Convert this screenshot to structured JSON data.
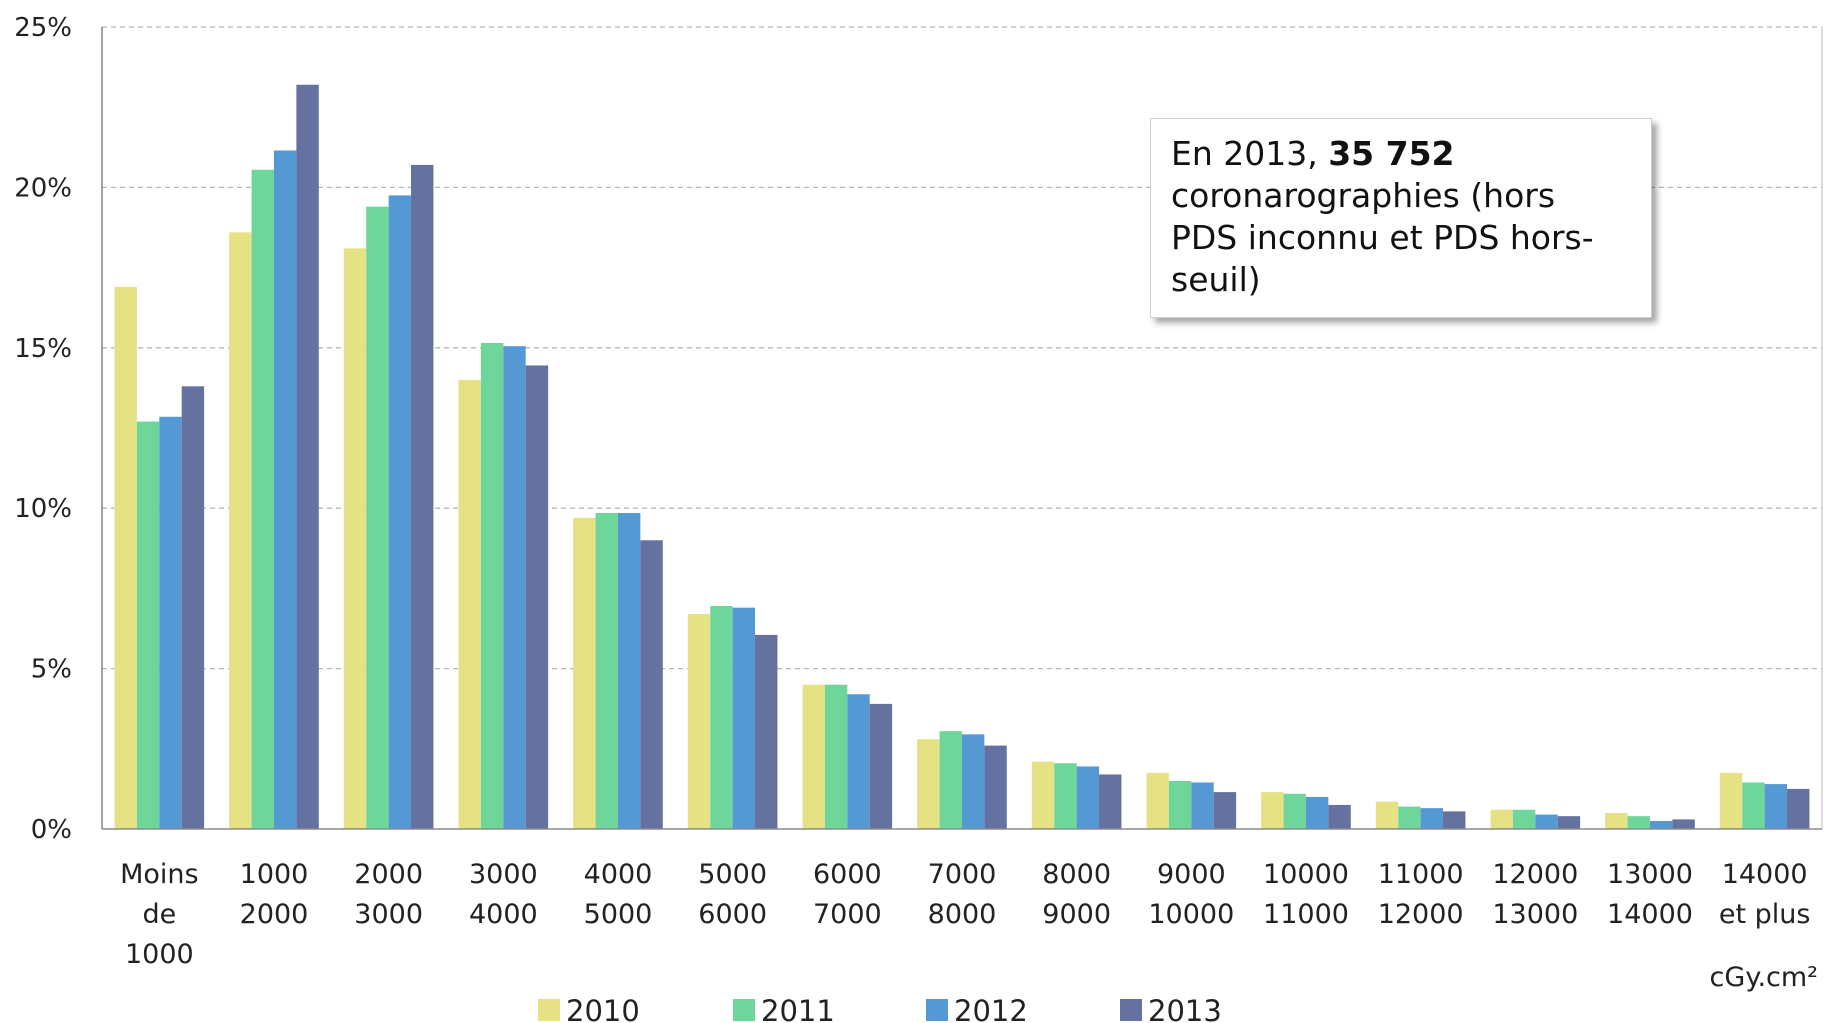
{
  "chart_data": {
    "type": "bar",
    "title": "",
    "xlabel": "cGy.cm²",
    "ylabel": "",
    "ylim": [
      0,
      25
    ],
    "y_ticks": [
      "0%",
      "5%",
      "10%",
      "15%",
      "20%",
      "25%"
    ],
    "grid": "horizontal dashed",
    "legend_position": "bottom",
    "categories": [
      [
        "Moins",
        "de",
        "1000"
      ],
      [
        "1000",
        "2000"
      ],
      [
        "2000",
        "3000"
      ],
      [
        "3000",
        "4000"
      ],
      [
        "4000",
        "5000"
      ],
      [
        "5000",
        "6000"
      ],
      [
        "6000",
        "7000"
      ],
      [
        "7000",
        "8000"
      ],
      [
        "8000",
        "9000"
      ],
      [
        "9000",
        "10000"
      ],
      [
        "10000",
        "11000"
      ],
      [
        "11000",
        "12000"
      ],
      [
        "12000",
        "13000"
      ],
      [
        "13000",
        "14000"
      ],
      [
        "14000",
        "et plus"
      ]
    ],
    "series": [
      {
        "name": "2010",
        "color": "#e5e284",
        "values": [
          16.9,
          18.6,
          18.1,
          14.0,
          9.7,
          6.7,
          4.5,
          2.8,
          2.1,
          1.75,
          1.15,
          0.85,
          0.6,
          0.5,
          1.75
        ]
      },
      {
        "name": "2011",
        "color": "#6fd69b",
        "values": [
          12.7,
          20.55,
          19.4,
          15.15,
          9.85,
          6.95,
          4.5,
          3.05,
          2.05,
          1.5,
          1.1,
          0.7,
          0.6,
          0.4,
          1.45
        ]
      },
      {
        "name": "2012",
        "color": "#5499d3",
        "values": [
          12.85,
          21.15,
          19.75,
          15.05,
          9.85,
          6.9,
          4.2,
          2.95,
          1.95,
          1.45,
          1.0,
          0.65,
          0.45,
          0.25,
          1.4
        ]
      },
      {
        "name": "2013",
        "color": "#65729f",
        "values": [
          13.8,
          23.2,
          20.7,
          14.45,
          9.0,
          6.05,
          3.9,
          2.6,
          1.7,
          1.15,
          0.75,
          0.55,
          0.4,
          0.3,
          1.25
        ]
      }
    ],
    "annotation": {
      "prefix": "En 2013, ",
      "bold": "35 752",
      "suffix": " coronarographies (hors PDS inconnu et PDS hors-seuil)"
    }
  }
}
